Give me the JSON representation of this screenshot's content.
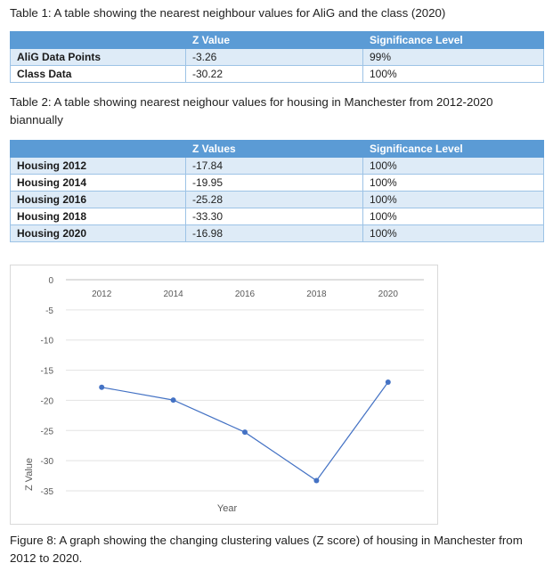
{
  "table1": {
    "caption": "Table 1: A table showing the nearest neighbour values for AliG and the class (2020)",
    "headers": [
      "",
      "Z Value",
      "Significance Level"
    ],
    "rows": [
      {
        "label": "AliG Data Points",
        "z": "-3.26",
        "sig": "99%"
      },
      {
        "label": "Class Data",
        "z": "-30.22",
        "sig": "100%"
      }
    ]
  },
  "table2": {
    "caption": "Table 2: A table showing nearest neighour values for housing in Manchester from 2012-2020 biannually",
    "headers": [
      "",
      "Z Values",
      "Significance Level"
    ],
    "rows": [
      {
        "label": "Housing 2012",
        "z": "-17.84",
        "sig": "100%"
      },
      {
        "label": "Housing 2014",
        "z": "-19.95",
        "sig": "100%"
      },
      {
        "label": "Housing 2016",
        "z": "-25.28",
        "sig": "100%"
      },
      {
        "label": "Housing 2018",
        "z": "-33.30",
        "sig": "100%"
      },
      {
        "label": "Housing 2020",
        "z": "-16.98",
        "sig": "100%"
      }
    ]
  },
  "chart_data": {
    "type": "line",
    "categories": [
      "2012",
      "2014",
      "2016",
      "2018",
      "2020"
    ],
    "series": [
      {
        "values": [
          -17.84,
          -19.95,
          -25.28,
          -33.3,
          -16.98
        ]
      }
    ],
    "xlabel": "Year",
    "ylabel": "Z Value",
    "ylim": [
      -35,
      0
    ],
    "yticks": [
      0,
      -5,
      -10,
      -15,
      -20,
      -25,
      -30,
      -35
    ],
    "x_axis_position": "top",
    "grid": true,
    "line_color": "#4472c4"
  },
  "figure_caption": "Figure 8: A graph showing the changing clustering values (Z score) of housing in Manchester from 2012 to 2020."
}
